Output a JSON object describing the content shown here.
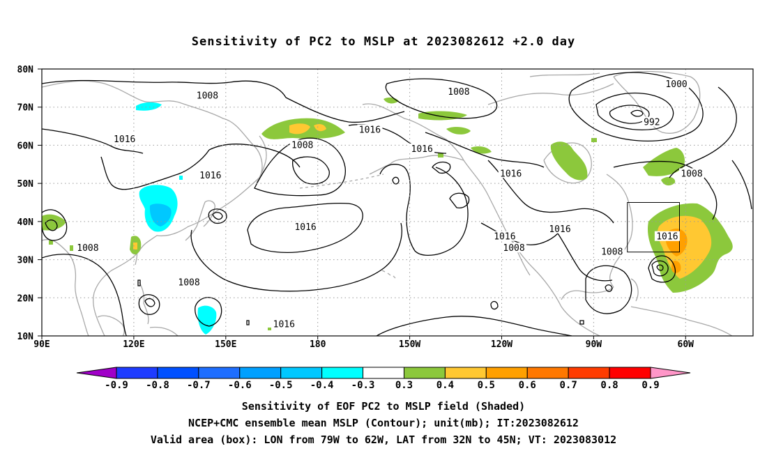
{
  "title": "Sensitivity of PC2 to MSLP at 2023082612 +2.0 day",
  "map": {
    "lat_labels": [
      "80N",
      "70N",
      "60N",
      "50N",
      "40N",
      "30N",
      "20N",
      "10N"
    ],
    "lon_labels": [
      "90E",
      "120E",
      "150E",
      "180",
      "150W",
      "120W",
      "90W",
      "60W"
    ],
    "lat_values": [
      80,
      70,
      60,
      50,
      40,
      30,
      20,
      10
    ],
    "lon_values": [
      90,
      120,
      150,
      180,
      210,
      240,
      270,
      300
    ],
    "lon_range": [
      90,
      322
    ],
    "lat_range": [
      10,
      80
    ],
    "grid": "dotted"
  },
  "contour_labels": [
    {
      "text": "1008",
      "lon": 144,
      "lat": 73
    },
    {
      "text": "1016",
      "lon": 117,
      "lat": 61.5
    },
    {
      "text": "1016",
      "lon": 145,
      "lat": 52
    },
    {
      "text": "1008",
      "lon": 175,
      "lat": 60
    },
    {
      "text": "1016",
      "lon": 197,
      "lat": 64
    },
    {
      "text": "1008",
      "lon": 226,
      "lat": 74
    },
    {
      "text": "1016",
      "lon": 214,
      "lat": 59
    },
    {
      "text": "1016",
      "lon": 243,
      "lat": 52.5
    },
    {
      "text": "1016",
      "lon": 176,
      "lat": 38.5
    },
    {
      "text": "1016",
      "lon": 169,
      "lat": 13
    },
    {
      "text": "1008",
      "lon": 105,
      "lat": 33
    },
    {
      "text": "1008",
      "lon": 138,
      "lat": 24
    },
    {
      "text": "1016",
      "lon": 241,
      "lat": 36
    },
    {
      "text": "1008",
      "lon": 244,
      "lat": 33
    },
    {
      "text": "1016",
      "lon": 259,
      "lat": 38
    },
    {
      "text": "1008",
      "lon": 276,
      "lat": 32
    },
    {
      "text": "1016",
      "lon": 294,
      "lat": 36
    },
    {
      "text": "1008",
      "lon": 302,
      "lat": 52.5
    },
    {
      "text": "1000",
      "lon": 297,
      "lat": 76
    },
    {
      "text": "992",
      "lon": 289,
      "lat": 66
    }
  ],
  "valid_box": {
    "lon_min": 281,
    "lon_max": 298,
    "lat_min": 32,
    "lat_max": 45
  },
  "colorbar": {
    "labels": [
      "-0.9",
      "-0.8",
      "-0.7",
      "-0.6",
      "-0.5",
      "-0.4",
      "-0.3",
      "0.3",
      "0.4",
      "0.5",
      "0.6",
      "0.7",
      "0.8",
      "0.9"
    ],
    "colors": [
      "#a000c8",
      "#1e3cff",
      "#0050ff",
      "#1e6eff",
      "#00a0ff",
      "#00c8ff",
      "#00ffff",
      "#ffffff",
      "#8cc83c",
      "#ffc832",
      "#ffa000",
      "#ff7800",
      "#ff3c00",
      "#ff0000",
      "#ff96c8"
    ]
  },
  "footer": {
    "line1": "Sensitivity of EOF PC2 to MSLP field (Shaded)",
    "line2": "NCEP+CMC ensemble mean MSLP (Contour); unit(mb); IT:2023082612",
    "line3": "Valid area (box): LON from 79W to 62W, LAT from 32N to 45N; VT: 2023083012"
  }
}
